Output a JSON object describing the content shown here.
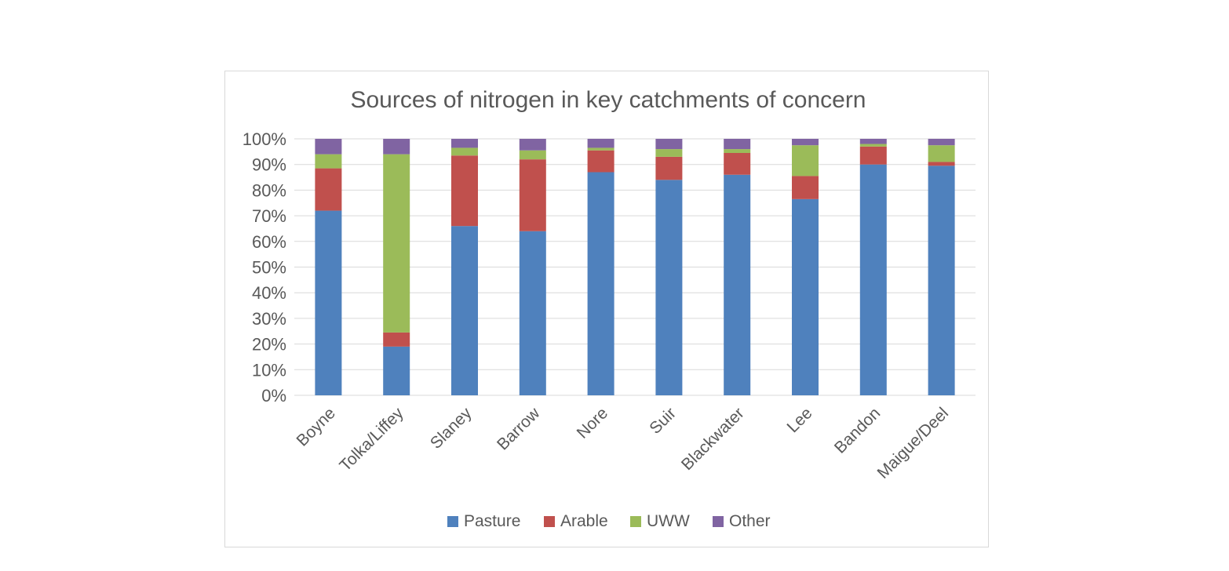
{
  "chart_data": {
    "type": "bar",
    "stacked": "percent",
    "title": "Sources of nitrogen in key catchments of concern",
    "categories": [
      "Boyne",
      "Tolka/Liffey",
      "Slaney",
      "Barrow",
      "Nore",
      "Suir",
      "Blackwater",
      "Lee",
      "Bandon",
      "Maigue/Deel"
    ],
    "series": [
      {
        "name": "Pasture",
        "color": "#4f81bd",
        "values": [
          72,
          19,
          66,
          64,
          87,
          84,
          86,
          76.5,
          90,
          89.5
        ]
      },
      {
        "name": "Arable",
        "color": "#c0504d",
        "values": [
          16.5,
          5.5,
          27.5,
          28,
          8.5,
          9,
          8.5,
          9,
          7,
          1.5
        ]
      },
      {
        "name": "UWW",
        "color": "#9bbb59",
        "values": [
          5.5,
          69.5,
          3,
          3.5,
          1,
          3,
          1.5,
          12,
          1,
          6.5
        ]
      },
      {
        "name": "Other",
        "color": "#8064a2",
        "values": [
          6,
          6,
          3.5,
          4.5,
          3.5,
          4,
          4,
          2.5,
          2,
          2.5
        ]
      }
    ],
    "ylim": [
      0,
      100
    ],
    "yticks": [
      "0%",
      "10%",
      "20%",
      "30%",
      "40%",
      "50%",
      "60%",
      "70%",
      "80%",
      "90%",
      "100%"
    ],
    "xlabel": "",
    "ylabel": "",
    "grid": true,
    "legend_position": "bottom"
  }
}
